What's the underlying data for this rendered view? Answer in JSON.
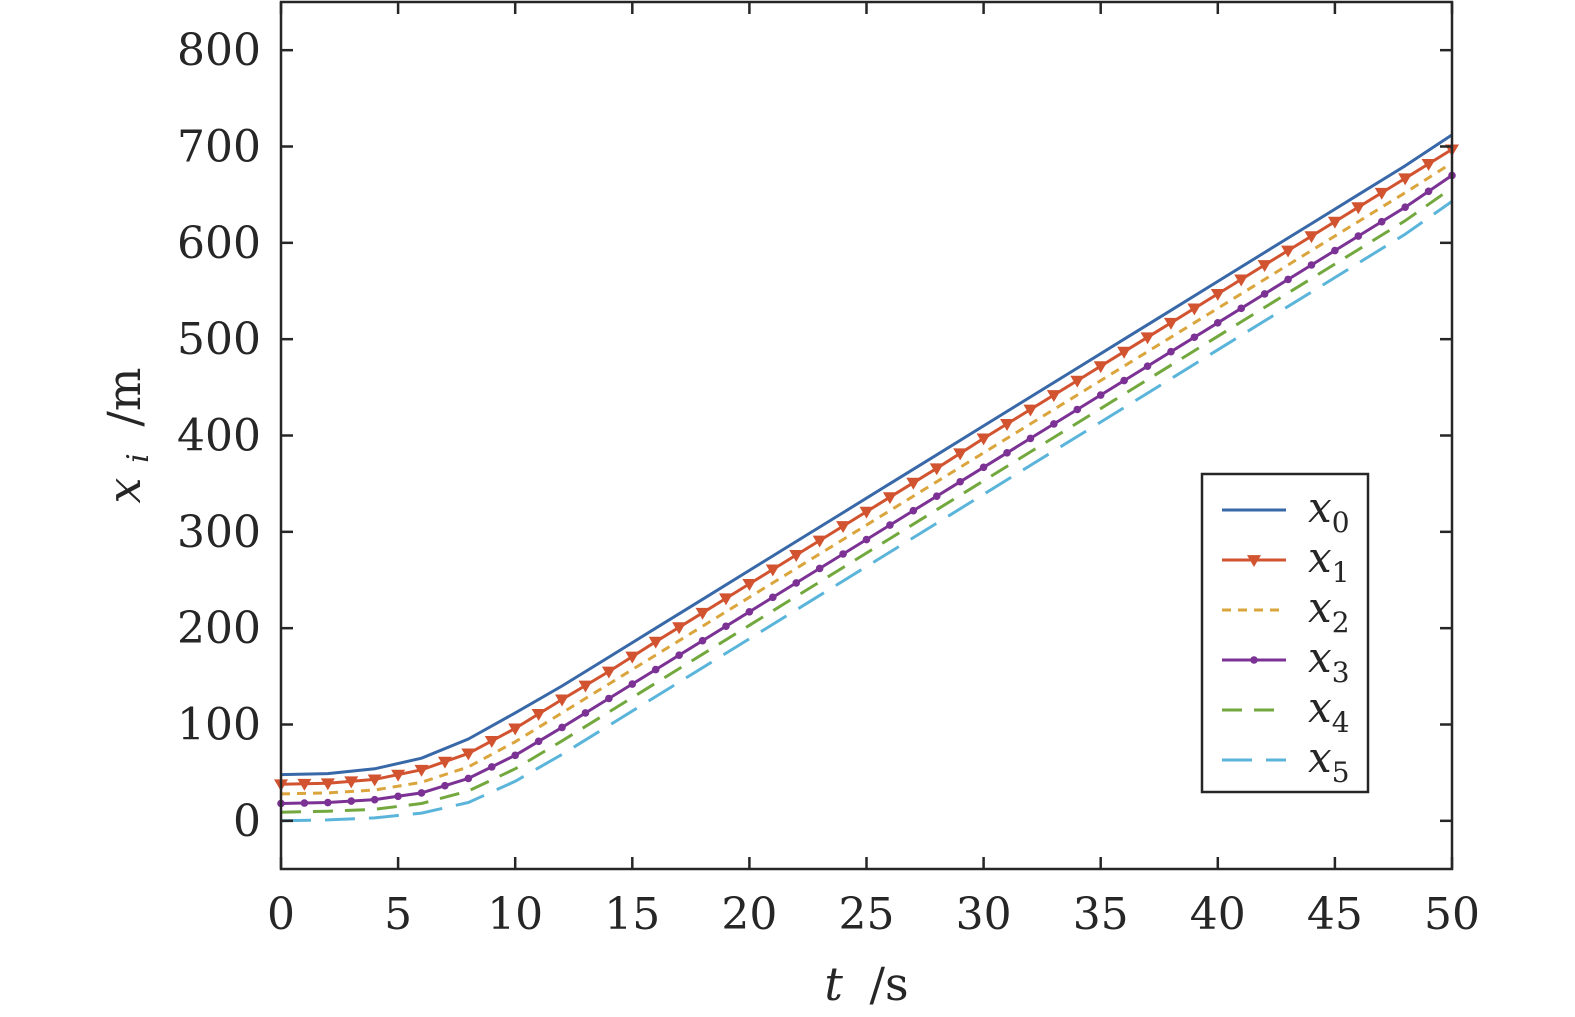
{
  "chart_data": {
    "type": "line",
    "xlabel": {
      "var": "t",
      "unit": "/s"
    },
    "ylabel": {
      "var": "x",
      "sub": "i",
      "unit": "/m"
    },
    "xlim": [
      0,
      50
    ],
    "ylim": [
      -50,
      850
    ],
    "xticks": [
      0,
      5,
      10,
      15,
      20,
      25,
      30,
      35,
      40,
      45,
      50
    ],
    "yticks": [
      0,
      100,
      200,
      300,
      400,
      500,
      600,
      700,
      800
    ],
    "grid": false,
    "legend_position": "bottom-right",
    "x": [
      0,
      2,
      4,
      6,
      8,
      10,
      12,
      14,
      16,
      18,
      20,
      22,
      24,
      26,
      28,
      30,
      32,
      34,
      36,
      38,
      40,
      42,
      44,
      46,
      48,
      50
    ],
    "series": [
      {
        "name": "x",
        "sub": "0",
        "color": "#3868A8",
        "style": "solid",
        "marker": "none",
        "values": [
          48,
          49,
          54,
          65,
          85,
          112,
          140,
          170,
          200,
          230,
          260,
          290,
          320,
          350,
          380,
          410,
          440,
          470,
          500,
          530,
          560,
          590,
          620,
          650,
          680,
          712
        ]
      },
      {
        "name": "x",
        "sub": "1",
        "color": "#D25330",
        "style": "solid",
        "marker": "triangle-down",
        "values": [
          38,
          39,
          43,
          53,
          70,
          96,
          126,
          155,
          186,
          216,
          246,
          276,
          306,
          336,
          366,
          397,
          427,
          457,
          487,
          517,
          547,
          577,
          607,
          637,
          667,
          697
        ]
      },
      {
        "name": "x",
        "sub": "2",
        "color": "#DBA53D",
        "style": "dotted",
        "marker": "none",
        "values": [
          28,
          29,
          32,
          40,
          56,
          82,
          112,
          142,
          172,
          202,
          232,
          262,
          292,
          322,
          352,
          382,
          412,
          442,
          472,
          502,
          532,
          562,
          592,
          622,
          652,
          683
        ]
      },
      {
        "name": "x",
        "sub": "3",
        "color": "#7B3294",
        "style": "solid",
        "marker": "dot",
        "values": [
          18,
          19,
          22,
          29,
          44,
          68,
          97,
          127,
          157,
          187,
          217,
          247,
          277,
          307,
          337,
          367,
          397,
          427,
          457,
          487,
          517,
          547,
          577,
          607,
          637,
          670
        ]
      },
      {
        "name": "x",
        "sub": "4",
        "color": "#72A83D",
        "style": "dashed",
        "marker": "none",
        "values": [
          9,
          10,
          12,
          18,
          31,
          54,
          83,
          113,
          143,
          173,
          203,
          233,
          263,
          293,
          323,
          353,
          383,
          413,
          443,
          473,
          503,
          533,
          563,
          593,
          623,
          657
        ]
      },
      {
        "name": "x",
        "sub": "5",
        "color": "#5BB5DA",
        "style": "longdash",
        "marker": "none",
        "values": [
          0,
          1,
          3,
          8,
          19,
          41,
          69,
          99,
          129,
          159,
          189,
          219,
          249,
          279,
          309,
          339,
          369,
          399,
          429,
          459,
          489,
          519,
          549,
          579,
          609,
          643
        ]
      }
    ]
  }
}
